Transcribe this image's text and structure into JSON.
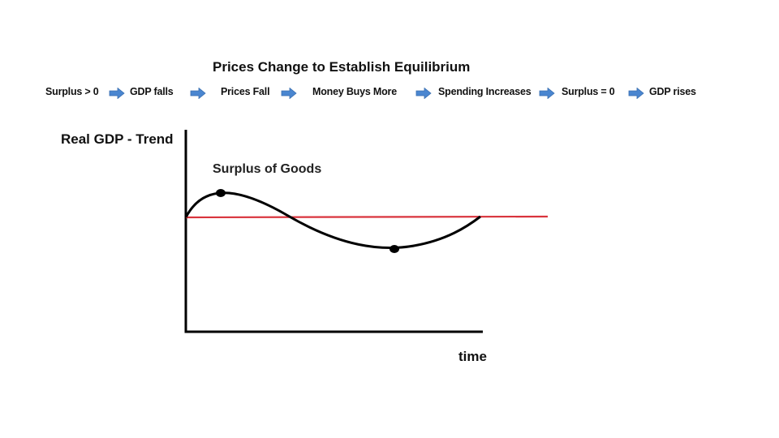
{
  "title": "Prices Change to Establish Equilibrium",
  "flow": {
    "steps": [
      "Surplus > 0",
      "GDP falls",
      "Prices Fall",
      "Money Buys More",
      "Spending Increases",
      "Surplus = 0",
      "GDP rises"
    ],
    "arrow_icon": "right-arrow-icon",
    "arrow_color": "#4a86d0"
  },
  "chart": {
    "y_axis_label": "Real GDP - Trend",
    "x_axis_label": "time",
    "annotation": "Surplus of Goods",
    "trend_line_color": "#d9343d",
    "curve_color": "#000000"
  }
}
